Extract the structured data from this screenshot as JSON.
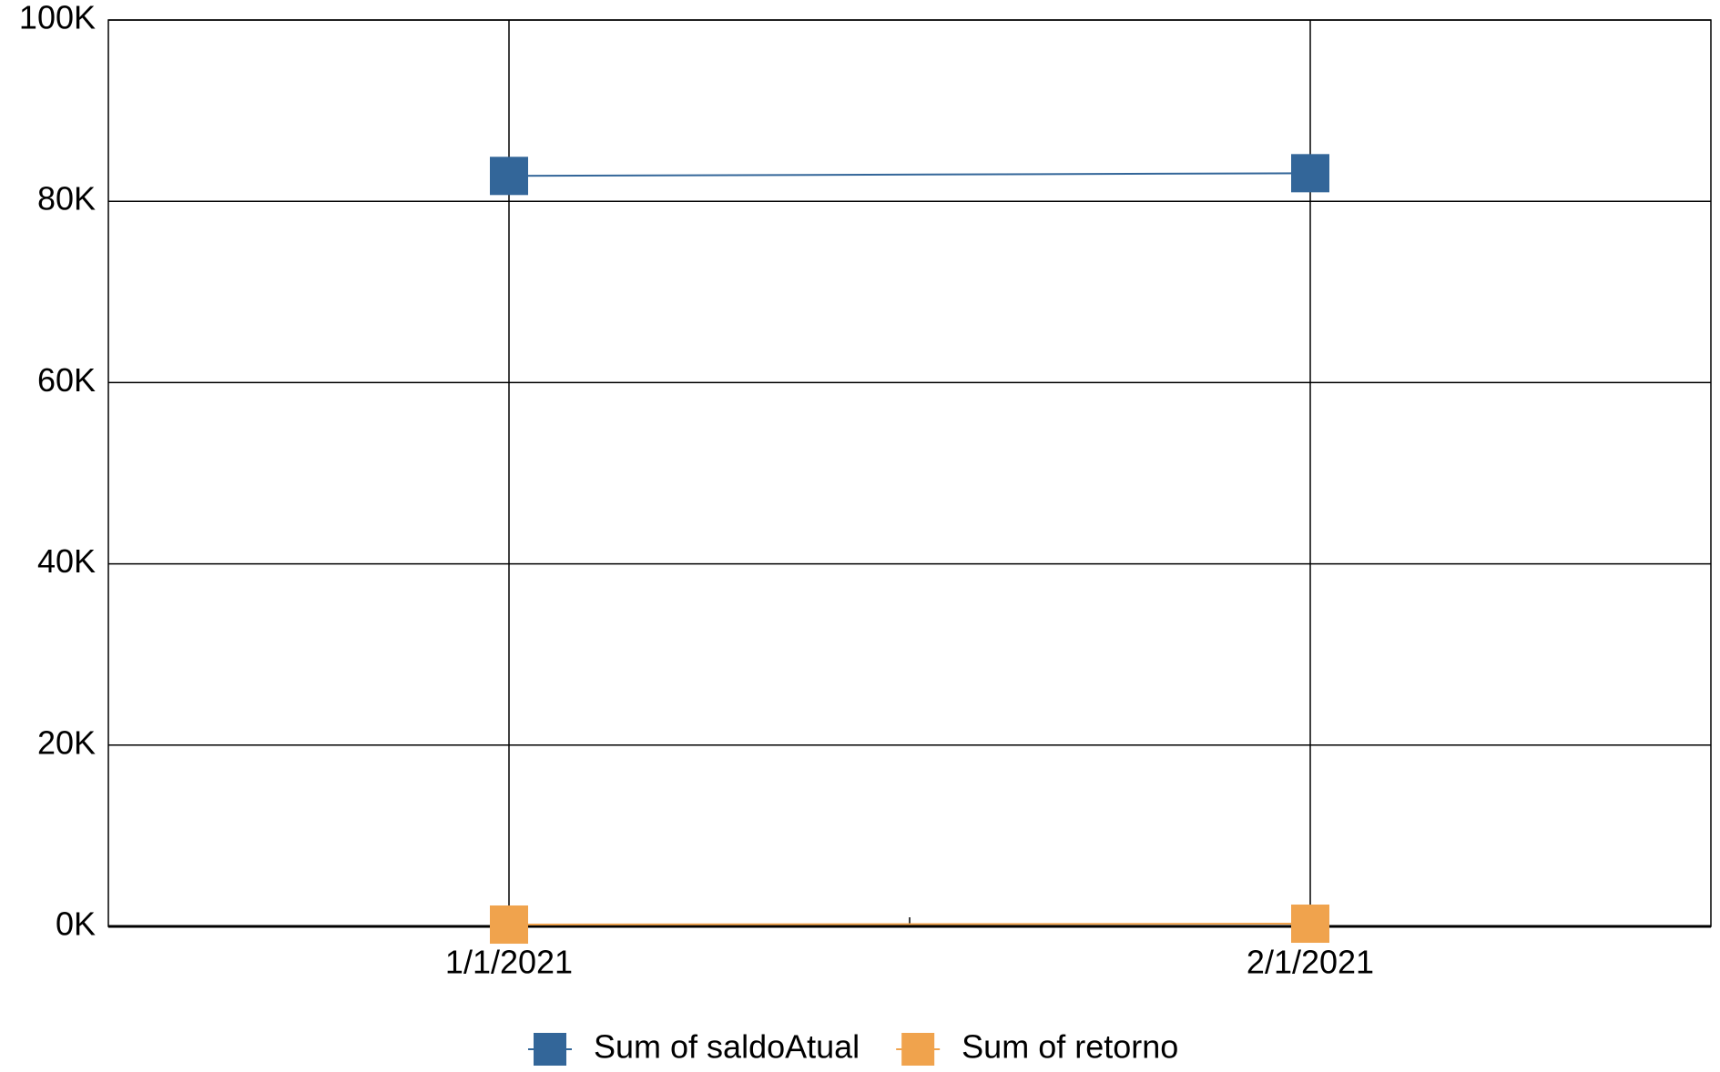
{
  "chart_data": {
    "type": "line",
    "categories": [
      "1/1/2021",
      "2/1/2021"
    ],
    "series": [
      {
        "name": "Sum of saldoAtual",
        "color": "#336699",
        "values": [
          82800,
          83100
        ]
      },
      {
        "name": "Sum of retorno",
        "color": "#f0a34d",
        "values": [
          200,
          300
        ]
      }
    ],
    "ylim": [
      0,
      100000
    ],
    "yticks": [
      {
        "value": 0,
        "label": "0K"
      },
      {
        "value": 20000,
        "label": "20K"
      },
      {
        "value": 40000,
        "label": "40K"
      },
      {
        "value": 60000,
        "label": "60K"
      },
      {
        "value": 80000,
        "label": "80K"
      },
      {
        "value": 100000,
        "label": "100K"
      }
    ],
    "grid": true,
    "legend": "bottom"
  }
}
